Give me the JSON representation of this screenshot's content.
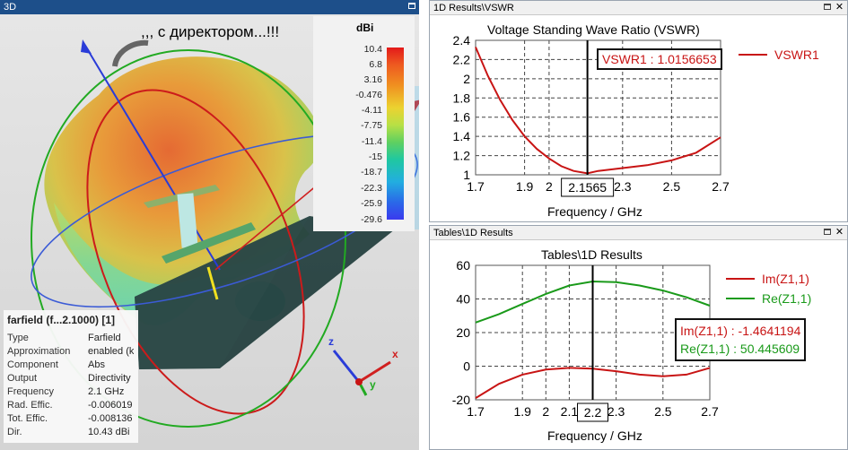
{
  "view3d": {
    "tab_title": "3D",
    "overlay_text": ",,, с директором...!!!",
    "colorbar": {
      "unit": "dBi",
      "ticks": [
        "10.4",
        "6.8",
        "3.16",
        "-0.476",
        "-4.11",
        "-7.75",
        "-11.4",
        "-15",
        "-18.7",
        "-22.3",
        "-25.9",
        "-29.6"
      ]
    },
    "info": {
      "title": "farfield (f...2.1000) [1]",
      "rows": [
        {
          "k": "Type",
          "v": "Farfield"
        },
        {
          "k": "Approximation",
          "v": "enabled (k"
        },
        {
          "k": "Component",
          "v": "Abs"
        },
        {
          "k": "Output",
          "v": "Directivity"
        },
        {
          "k": "Frequency",
          "v": "2.1 GHz"
        },
        {
          "k": "Rad. Effic.",
          "v": "-0.006019"
        },
        {
          "k": "Tot. Effic.",
          "v": "-0.008136"
        },
        {
          "k": "Dir.",
          "v": "10.43 dBi"
        }
      ]
    },
    "axes": {
      "x": "x",
      "y": "y",
      "z": "z"
    }
  },
  "vswr_panel": {
    "tab_title": "1D Results\\VSWR",
    "chart_title": "Voltage Standing Wave Ratio (VSWR)",
    "marker_label": "VSWR1 : 1.0156653",
    "marker_x": "2.1565",
    "xlabel": "Frequency / GHz",
    "legend": "VSWR1"
  },
  "tables_panel": {
    "tab_title": "Tables\\1D Results",
    "chart_title": "Tables\\1D Results",
    "marker_x": "2.2",
    "xlabel": "Frequency / GHz",
    "im_label": "Im(Z1,1) : -1.4641194",
    "re_label": "Re(Z1,1) : 50.445609",
    "legend_im": "Im(Z1,1)",
    "legend_re": "Re(Z1,1)"
  },
  "chart_data": [
    {
      "type": "line",
      "title": "Voltage Standing Wave Ratio (VSWR)",
      "xlabel": "Frequency / GHz",
      "ylabel": "",
      "xlim": [
        1.7,
        2.7
      ],
      "ylim": [
        1,
        2.4
      ],
      "xticks": [
        "1.7",
        "1.9",
        "2",
        "2.3",
        "2.5",
        "2.7"
      ],
      "xtick_values": [
        1.7,
        1.9,
        2,
        2.3,
        2.5,
        2.7
      ],
      "yticks": [
        "1",
        "1.2",
        "1.4",
        "1.6",
        "1.8",
        "2",
        "2.2",
        "2.4"
      ],
      "ytick_values": [
        1,
        1.2,
        1.4,
        1.6,
        1.8,
        2,
        2.2,
        2.4
      ],
      "marker": 2.1565,
      "series": [
        {
          "name": "VSWR1",
          "color": "#c81414",
          "x": [
            1.7,
            1.75,
            1.8,
            1.85,
            1.9,
            1.95,
            2.0,
            2.05,
            2.1,
            2.1565,
            2.2,
            2.3,
            2.4,
            2.5,
            2.6,
            2.7
          ],
          "y": [
            2.33,
            2.03,
            1.78,
            1.57,
            1.4,
            1.27,
            1.17,
            1.09,
            1.04,
            1.016,
            1.04,
            1.07,
            1.1,
            1.15,
            1.23,
            1.39
          ]
        }
      ]
    },
    {
      "type": "line",
      "title": "Tables\\1D Results",
      "xlabel": "Frequency / GHz",
      "ylabel": "",
      "xlim": [
        1.7,
        2.7
      ],
      "ylim": [
        -20,
        60
      ],
      "xticks": [
        "1.7",
        "1.9",
        "2",
        "2.1",
        "2.3",
        "2.5",
        "2.7"
      ],
      "xtick_values": [
        1.7,
        1.9,
        2,
        2.1,
        2.3,
        2.5,
        2.7
      ],
      "yticks": [
        "-20",
        "0",
        "20",
        "40",
        "60"
      ],
      "ytick_values": [
        -20,
        0,
        20,
        40,
        60
      ],
      "marker": 2.2,
      "series": [
        {
          "name": "Im(Z1,1)",
          "color": "#c81414",
          "x": [
            1.7,
            1.8,
            1.9,
            2.0,
            2.1,
            2.2,
            2.3,
            2.4,
            2.5,
            2.6,
            2.7
          ],
          "y": [
            -19,
            -10.5,
            -5,
            -2,
            -1,
            -1.5,
            -3,
            -5,
            -6,
            -5,
            -1
          ]
        },
        {
          "name": "Re(Z1,1)",
          "color": "#1a9a1a",
          "x": [
            1.7,
            1.8,
            1.9,
            2.0,
            2.1,
            2.2,
            2.3,
            2.4,
            2.5,
            2.6,
            2.7
          ],
          "y": [
            26,
            31,
            37,
            43,
            48,
            50.4,
            50,
            48,
            45,
            41,
            36
          ]
        }
      ]
    }
  ]
}
